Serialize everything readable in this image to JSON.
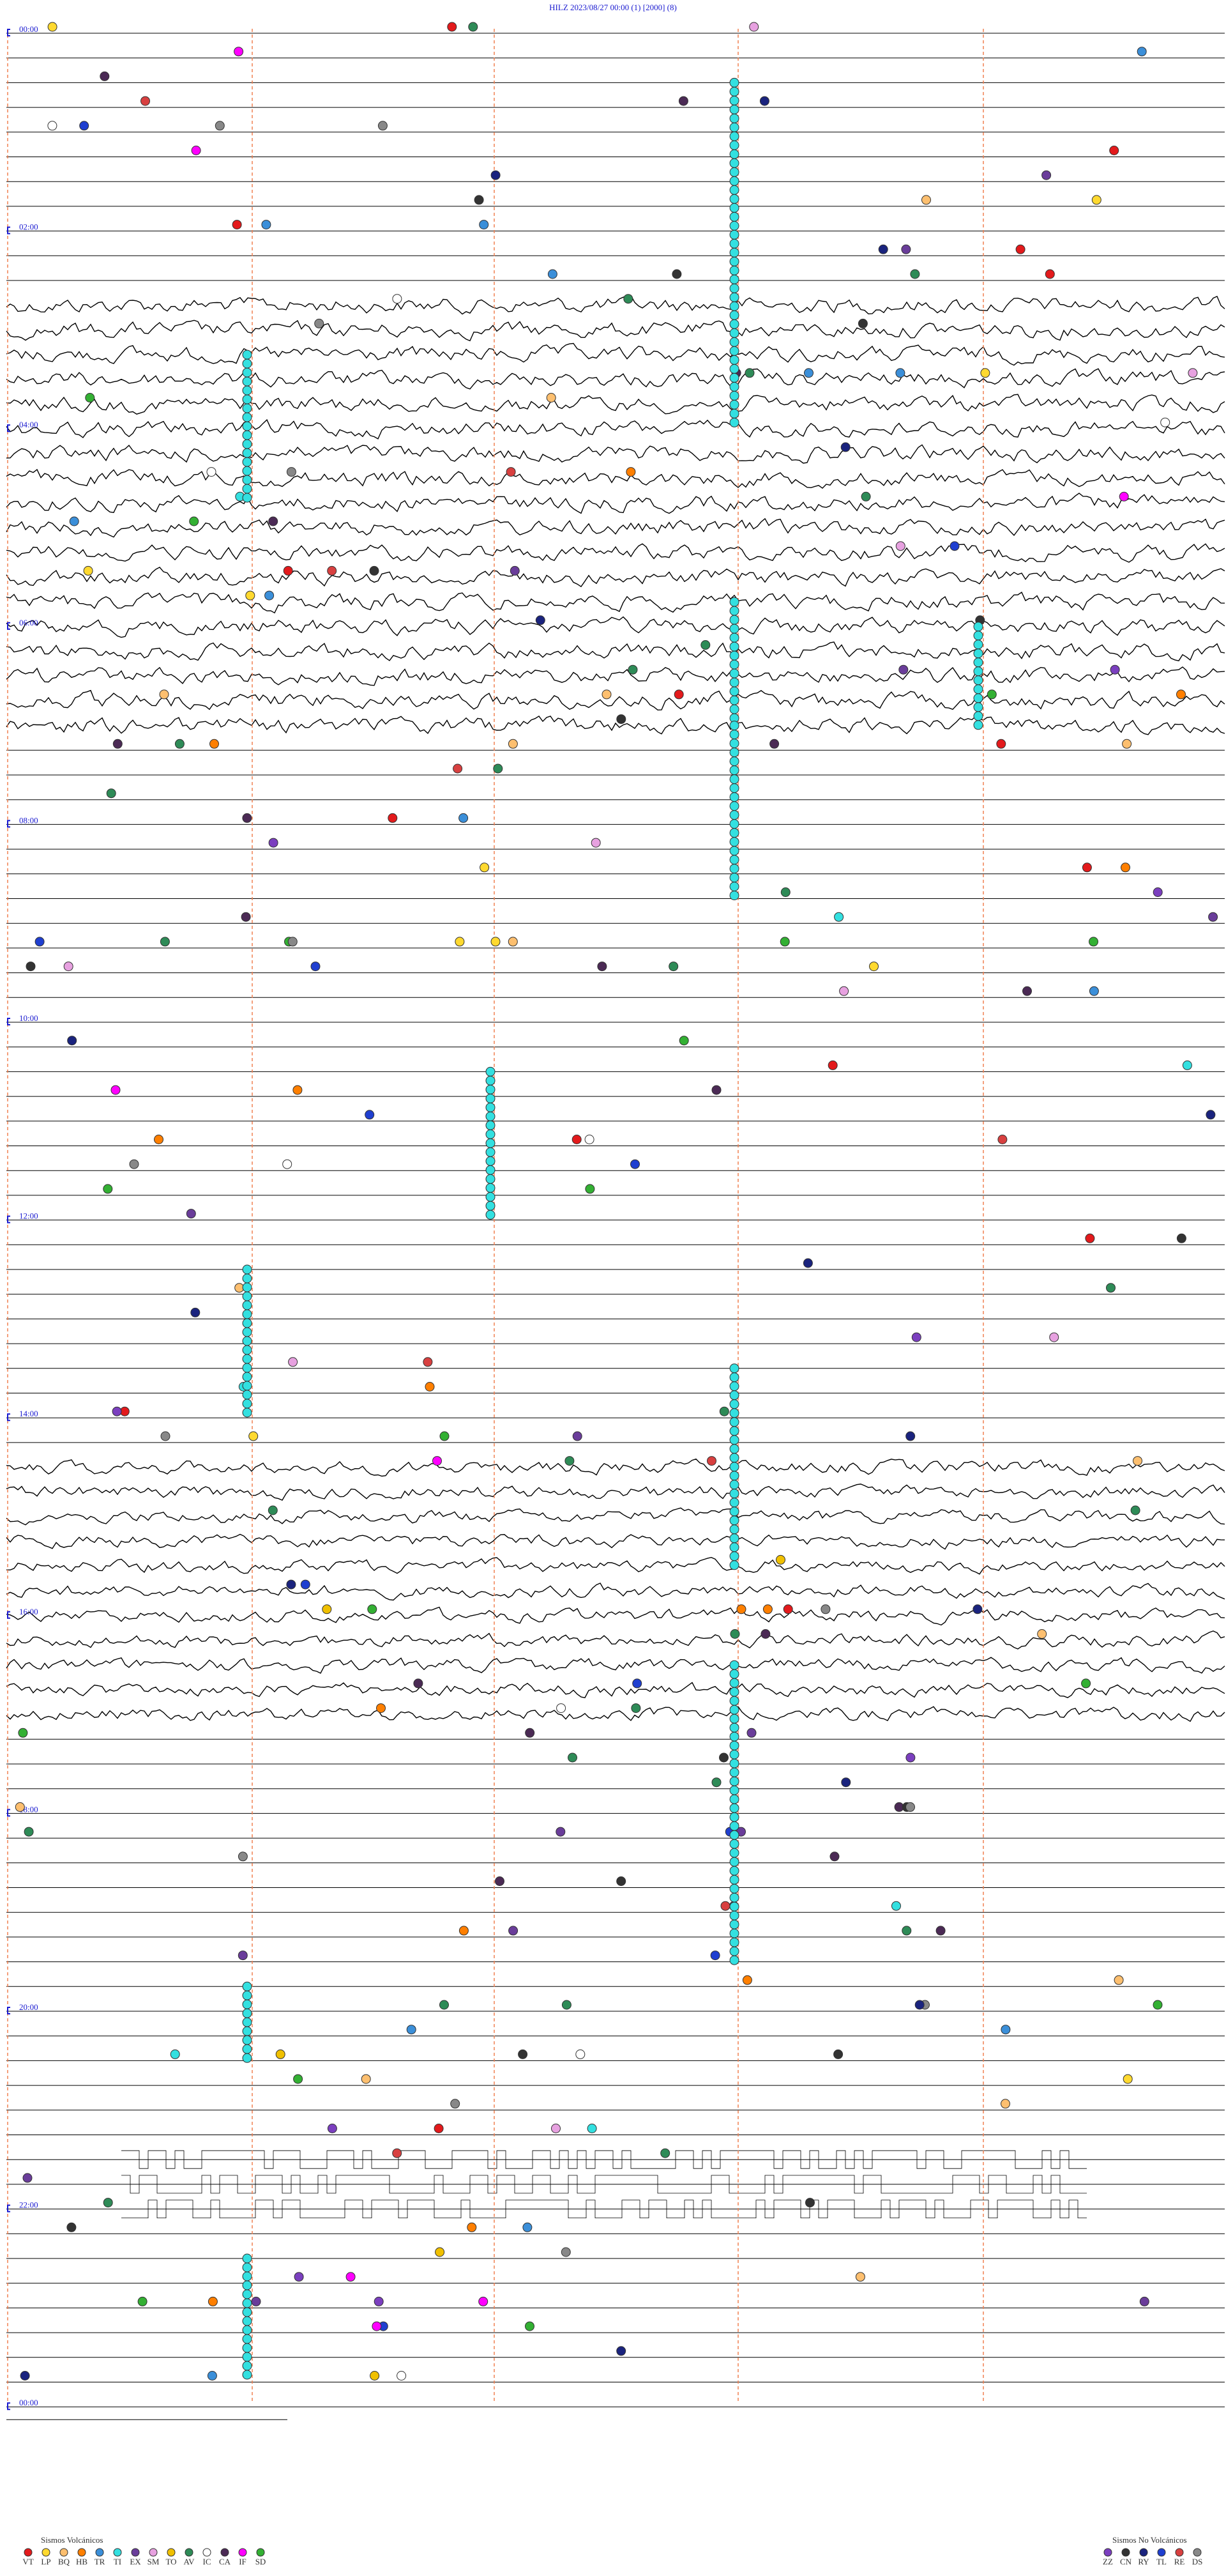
{
  "header": {
    "title": "HILZ    2023/08/27 00:00     (1)    [2000]   (8)"
  },
  "hour_labels": [
    "00:00",
    "02:00",
    "04:00",
    "06:00",
    "08:00",
    "10:00",
    "12:00",
    "14:00",
    "16:00",
    "18:00",
    "20:00",
    "22:00",
    "00:00"
  ],
  "legend": {
    "volcanic": {
      "title": "Sismos Volcánicos",
      "codes": [
        {
          "code": "VT",
          "color": "#e31a1c"
        },
        {
          "code": "LP",
          "color": "#ffd92f"
        },
        {
          "code": "BQ",
          "color": "#fdbf6f"
        },
        {
          "code": "HB",
          "color": "#ff7f00"
        },
        {
          "code": "TR",
          "color": "#3b8fd9"
        },
        {
          "code": "TI",
          "color": "#33e0e0"
        },
        {
          "code": "EX",
          "color": "#6a3d9a"
        },
        {
          "code": "SM",
          "color": "#e7a1e0"
        },
        {
          "code": "TO",
          "color": "#f0c000"
        },
        {
          "code": "AV",
          "color": "#2e8b57"
        },
        {
          "code": "IC",
          "color": "#ffffff"
        },
        {
          "code": "CA",
          "color": "#4b2a55"
        },
        {
          "code": "IF",
          "color": "#ff00ff"
        },
        {
          "code": "SD",
          "color": "#33b033"
        }
      ]
    },
    "non_volcanic": {
      "title": "Sismos No Volcánicos",
      "codes": [
        {
          "code": "ZZ",
          "color": "#7b3fbf"
        },
        {
          "code": "CN",
          "color": "#333333"
        },
        {
          "code": "RY",
          "color": "#1a237e"
        },
        {
          "code": "TL",
          "color": "#1f3fd0"
        },
        {
          "code": "RE",
          "color": "#d84040"
        },
        {
          "code": "DS",
          "color": "#888888"
        }
      ]
    }
  }
}
